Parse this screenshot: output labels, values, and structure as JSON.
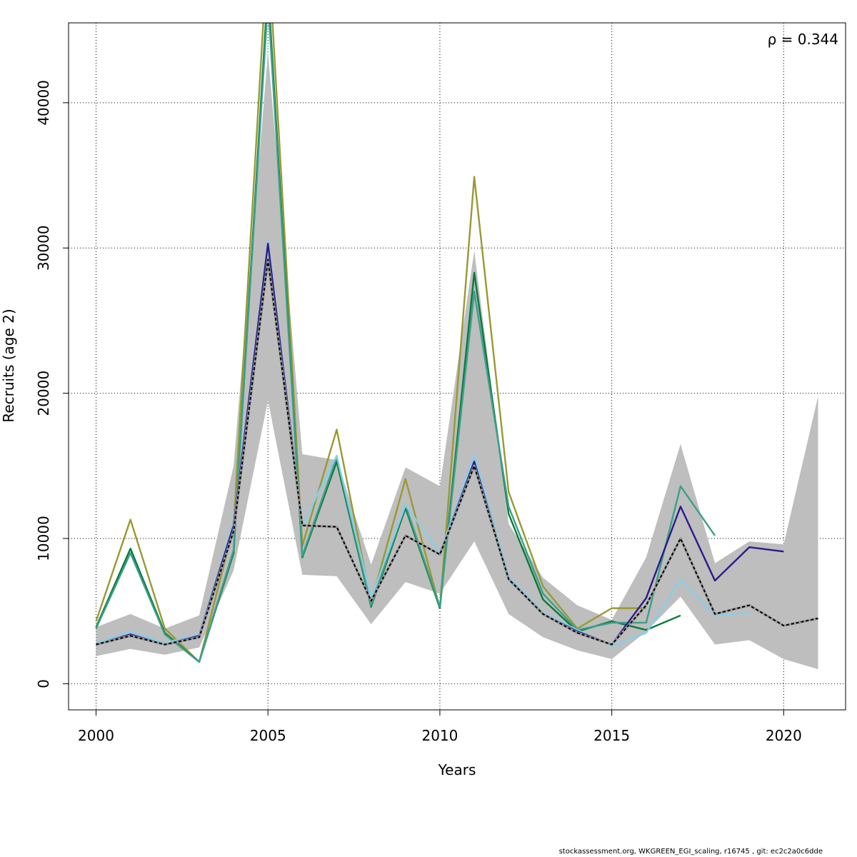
{
  "chart_data": {
    "type": "line",
    "xlabel": "Years",
    "ylabel": "Recruits (age 2)",
    "annotation": "ρ = 0.344",
    "xlim": [
      1999.2,
      2021.8
    ],
    "ylim": [
      -1800,
      45500
    ],
    "x_ticks": [
      2000,
      2005,
      2010,
      2015,
      2020
    ],
    "y_ticks": [
      0,
      10000,
      20000,
      30000,
      40000
    ],
    "grid": true,
    "confidence_band": {
      "x": [
        2000,
        2001,
        2002,
        2003,
        2004,
        2005,
        2006,
        2007,
        2008,
        2009,
        2010,
        2011,
        2012,
        2013,
        2014,
        2015,
        2016,
        2017,
        2018,
        2019,
        2020,
        2021
      ],
      "upper": [
        3900,
        4800,
        3800,
        4700,
        15000,
        43500,
        15800,
        15400,
        8200,
        14900,
        13600,
        29800,
        11000,
        7300,
        5400,
        4400,
        8700,
        16500,
        8300,
        9800,
        9600,
        19800
      ],
      "lower": [
        1900,
        2400,
        2000,
        2500,
        7800,
        19500,
        7500,
        7400,
        4100,
        7000,
        6200,
        9800,
        4800,
        3200,
        2300,
        1700,
        3600,
        6000,
        2700,
        3000,
        1700,
        1000
      ]
    },
    "series": [
      {
        "color": "#000000",
        "dashed": true,
        "x": [
          2000,
          2001,
          2002,
          2003,
          2004,
          2005,
          2006,
          2007,
          2008,
          2009,
          2010,
          2011,
          2012,
          2013,
          2014,
          2015,
          2016,
          2017,
          2018,
          2019,
          2020,
          2021
        ],
        "values": [
          2700,
          3300,
          2700,
          3200,
          10500,
          29200,
          10900,
          10800,
          5700,
          10200,
          8900,
          15000,
          7200,
          4800,
          3500,
          2700,
          5400,
          10000,
          4800,
          5400,
          4000,
          4500
        ]
      },
      {
        "color": "#2a1b8c",
        "x": [
          2000,
          2001,
          2002,
          2003,
          2004,
          2005,
          2006,
          2007,
          2008,
          2009,
          2010,
          2011,
          2012,
          2013,
          2014,
          2015,
          2016,
          2017,
          2018,
          2019,
          2020
        ],
        "values": [
          2700,
          3400,
          2700,
          3300,
          10900,
          30300,
          10900,
          10800,
          5700,
          10200,
          8900,
          15300,
          7200,
          4800,
          3600,
          2700,
          5900,
          12200,
          7100,
          9400,
          9100
        ]
      },
      {
        "color": "#87ceeb",
        "x": [
          2000,
          2001,
          2002,
          2003,
          2004,
          2005,
          2006,
          2007,
          2008,
          2009,
          2010,
          2011,
          2012,
          2013,
          2014,
          2015,
          2016,
          2017,
          2018,
          2019
        ],
        "values": [
          2800,
          3600,
          2800,
          3400,
          11100,
          30500,
          10900,
          15700,
          5900,
          12300,
          9000,
          15700,
          7400,
          4900,
          3700,
          2600,
          3500,
          7200,
          4700,
          4900
        ]
      },
      {
        "color": "#3aa08a",
        "x": [
          2000,
          2001,
          2002,
          2003,
          2004,
          2005,
          2006,
          2007,
          2008,
          2009,
          2010,
          2011,
          2012,
          2013,
          2014,
          2015,
          2016,
          2017,
          2018
        ],
        "values": [
          3800,
          9000,
          3400,
          1500,
          9200,
          47000,
          8800,
          15600,
          5400,
          12300,
          5300,
          27000,
          12200,
          6200,
          3700,
          4200,
          4200,
          13600,
          10200
        ]
      },
      {
        "color": "#0a7a3a",
        "x": [
          2000,
          2001,
          2002,
          2003,
          2004,
          2005,
          2006,
          2007,
          2008,
          2009,
          2010,
          2011,
          2012,
          2013,
          2014,
          2015,
          2016,
          2017
        ],
        "values": [
          3900,
          9300,
          3500,
          1500,
          9000,
          48000,
          8700,
          15300,
          5300,
          12100,
          5200,
          28300,
          11700,
          5800,
          3600,
          4300,
          3700,
          4700
        ]
      },
      {
        "color": "#999933",
        "x": [
          2000,
          2001,
          2002,
          2003,
          2004,
          2005,
          2006,
          2007,
          2008,
          2009,
          2010,
          2011,
          2012,
          2013,
          2014,
          2015,
          2016
        ],
        "values": [
          4300,
          11300,
          3800,
          1500,
          10800,
          51000,
          9500,
          17500,
          5600,
          14100,
          5200,
          34900,
          13200,
          6700,
          3800,
          5200,
          5200
        ]
      }
    ]
  },
  "footer": "stockassessment.org, WKGREEN_EGI_scaling, r16745 , git: ec2c2a0c6dde"
}
